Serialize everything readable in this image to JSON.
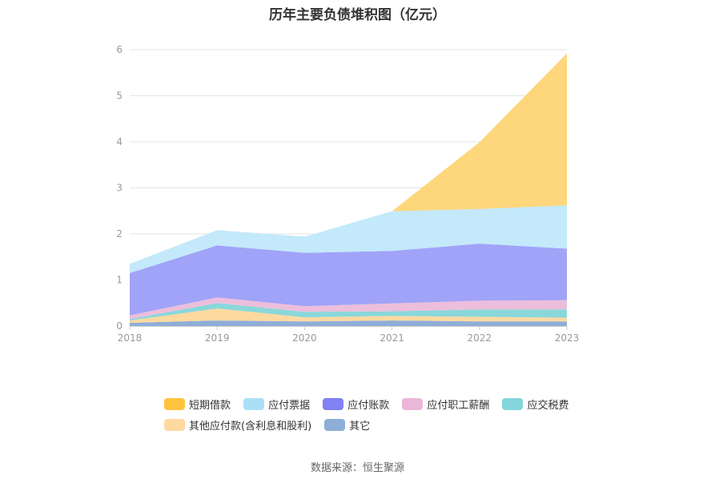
{
  "chart_data": {
    "type": "area",
    "stacked": true,
    "title": "历年主要负债堆积图（亿元）",
    "categories": [
      "2018",
      "2019",
      "2020",
      "2021",
      "2022",
      "2023"
    ],
    "ylim": [
      0,
      6
    ],
    "yticks": [
      "0",
      "1",
      "2",
      "3",
      "4",
      "5",
      "6"
    ],
    "grid": true,
    "legend_position": "bottom",
    "series": [
      {
        "name": "其它",
        "color": "#8eaed8",
        "values": [
          0.07,
          0.12,
          0.1,
          0.12,
          0.1,
          0.1
        ]
      },
      {
        "name": "其他应付款(含利息和股利)",
        "color": "#fdd9a0",
        "values": [
          0.05,
          0.26,
          0.09,
          0.1,
          0.1,
          0.08
        ]
      },
      {
        "name": "应交税费",
        "color": "#8ad7da",
        "values": [
          0.03,
          0.12,
          0.12,
          0.1,
          0.16,
          0.18
        ]
      },
      {
        "name": "应付职工薪酬",
        "color": "#ecbedb",
        "values": [
          0.08,
          0.12,
          0.12,
          0.17,
          0.19,
          0.2
        ]
      },
      {
        "name": "应付账款",
        "color": "#a0a3f7",
        "values": [
          0.92,
          1.13,
          1.16,
          1.14,
          1.24,
          1.12
        ]
      },
      {
        "name": "应付票据",
        "color": "#c3e9fb",
        "values": [
          0.2,
          0.33,
          0.35,
          0.86,
          0.75,
          0.94
        ]
      },
      {
        "name": "短期借款",
        "color": "#fed67b",
        "values": [
          0,
          0,
          0,
          0,
          1.45,
          3.3
        ]
      }
    ]
  },
  "legend": {
    "row1": [
      {
        "label": "短期借款",
        "color": "#fec440"
      },
      {
        "label": "应付票据",
        "color": "#abdff8"
      },
      {
        "label": "应付账款",
        "color": "#8081f2"
      },
      {
        "label": "应付职工薪酬",
        "color": "#ebb7d8"
      },
      {
        "label": "应交税费",
        "color": "#83d6d9"
      }
    ],
    "row2": [
      {
        "label": "其他应付款(含利息和股利)",
        "color": "#fed9a2"
      },
      {
        "label": "其它",
        "color": "#8eaed8"
      }
    ]
  },
  "source": "数据来源：恒生聚源"
}
